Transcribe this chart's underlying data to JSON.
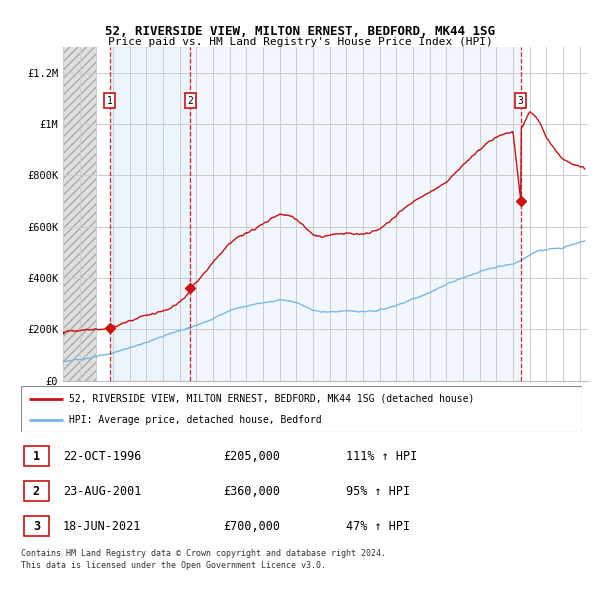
{
  "title1": "52, RIVERSIDE VIEW, MILTON ERNEST, BEDFORD, MK44 1SG",
  "title2": "Price paid vs. HM Land Registry's House Price Index (HPI)",
  "xlim_start": 1994.0,
  "xlim_end": 2025.5,
  "ylim_min": 0,
  "ylim_max": 1300000,
  "yticks": [
    0,
    200000,
    400000,
    600000,
    800000,
    1000000,
    1200000
  ],
  "ytick_labels": [
    "£0",
    "£200K",
    "£400K",
    "£600K",
    "£800K",
    "£1M",
    "£1.2M"
  ],
  "xticks": [
    1994,
    1995,
    1996,
    1997,
    1998,
    1999,
    2000,
    2001,
    2002,
    2003,
    2004,
    2005,
    2006,
    2007,
    2008,
    2009,
    2010,
    2011,
    2012,
    2013,
    2014,
    2015,
    2016,
    2017,
    2018,
    2019,
    2020,
    2021,
    2022,
    2023,
    2024,
    2025
  ],
  "sale_dates": [
    1996.81,
    2001.64,
    2021.46
  ],
  "sale_prices": [
    205000,
    360000,
    700000
  ],
  "sale_labels": [
    "1",
    "2",
    "3"
  ],
  "hpi_color": "#7ab8e8",
  "price_color": "#cc1111",
  "grid_color": "#cccccc",
  "shade_color": "#ddeeff",
  "legend_label1": "52, RIVERSIDE VIEW, MILTON ERNEST, BEDFORD, MK44 1SG (detached house)",
  "legend_label2": "HPI: Average price, detached house, Bedford",
  "table_data": [
    [
      "1",
      "22-OCT-1996",
      "£205,000",
      "111% ↑ HPI"
    ],
    [
      "2",
      "23-AUG-2001",
      "£360,000",
      "95% ↑ HPI"
    ],
    [
      "3",
      "18-JUN-2021",
      "£700,000",
      "47% ↑ HPI"
    ]
  ],
  "footnote1": "Contains HM Land Registry data © Crown copyright and database right 2024.",
  "footnote2": "This data is licensed under the Open Government Licence v3.0.",
  "hpi_anchors_x": [
    1994.0,
    1994.5,
    1995.0,
    1995.5,
    1996.0,
    1996.5,
    1997.0,
    1997.5,
    1998.0,
    1998.5,
    1999.0,
    1999.5,
    2000.0,
    2000.5,
    2001.0,
    2001.5,
    2002.0,
    2002.5,
    2003.0,
    2003.5,
    2004.0,
    2004.5,
    2005.0,
    2005.5,
    2006.0,
    2006.5,
    2007.0,
    2007.5,
    2008.0,
    2008.5,
    2009.0,
    2009.5,
    2010.0,
    2010.5,
    2011.0,
    2011.5,
    2012.0,
    2012.5,
    2013.0,
    2013.5,
    2014.0,
    2014.5,
    2015.0,
    2015.5,
    2016.0,
    2016.5,
    2017.0,
    2017.5,
    2018.0,
    2018.5,
    2019.0,
    2019.5,
    2020.0,
    2020.5,
    2021.0,
    2021.5,
    2022.0,
    2022.5,
    2023.0,
    2023.5,
    2024.0,
    2024.5,
    2025.0,
    2025.3
  ],
  "hpi_anchors_y": [
    75000,
    78000,
    82000,
    87000,
    93000,
    100000,
    108000,
    118000,
    128000,
    138000,
    148000,
    160000,
    173000,
    185000,
    195000,
    205000,
    215000,
    228000,
    242000,
    258000,
    272000,
    283000,
    292000,
    298000,
    302000,
    308000,
    315000,
    312000,
    305000,
    290000,
    275000,
    268000,
    268000,
    270000,
    272000,
    270000,
    268000,
    270000,
    275000,
    283000,
    293000,
    305000,
    318000,
    330000,
    342000,
    358000,
    375000,
    388000,
    400000,
    412000,
    425000,
    435000,
    442000,
    448000,
    455000,
    468000,
    490000,
    505000,
    510000,
    515000,
    520000,
    530000,
    540000,
    545000
  ],
  "price_anchors_x": [
    1994.0,
    1994.5,
    1995.0,
    1995.5,
    1996.0,
    1996.5,
    1996.81,
    1997.0,
    1997.5,
    1998.0,
    1998.5,
    1999.0,
    1999.5,
    2000.0,
    2000.5,
    2001.0,
    2001.5,
    2001.64,
    2002.0,
    2002.5,
    2003.0,
    2003.5,
    2004.0,
    2004.5,
    2005.0,
    2005.5,
    2006.0,
    2006.5,
    2007.0,
    2007.5,
    2008.0,
    2008.5,
    2009.0,
    2009.5,
    2010.0,
    2010.5,
    2011.0,
    2011.5,
    2012.0,
    2012.5,
    2013.0,
    2013.5,
    2014.0,
    2014.5,
    2015.0,
    2015.5,
    2016.0,
    2016.5,
    2017.0,
    2017.5,
    2018.0,
    2018.5,
    2019.0,
    2019.5,
    2020.0,
    2020.5,
    2021.0,
    2021.46,
    2021.5,
    2022.0,
    2022.5,
    2023.0,
    2023.5,
    2024.0,
    2024.5,
    2025.0,
    2025.3
  ],
  "price_anchors_y": [
    190000,
    193000,
    196000,
    198000,
    200000,
    202000,
    205000,
    210000,
    220000,
    232000,
    245000,
    255000,
    263000,
    272000,
    285000,
    305000,
    340000,
    360000,
    385000,
    420000,
    460000,
    500000,
    535000,
    558000,
    575000,
    590000,
    610000,
    632000,
    648000,
    645000,
    628000,
    600000,
    570000,
    558000,
    568000,
    572000,
    575000,
    572000,
    570000,
    578000,
    592000,
    615000,
    645000,
    672000,
    695000,
    718000,
    735000,
    752000,
    775000,
    805000,
    840000,
    870000,
    900000,
    928000,
    948000,
    960000,
    970000,
    700000,
    985000,
    1050000,
    1020000,
    950000,
    900000,
    865000,
    845000,
    835000,
    830000
  ]
}
